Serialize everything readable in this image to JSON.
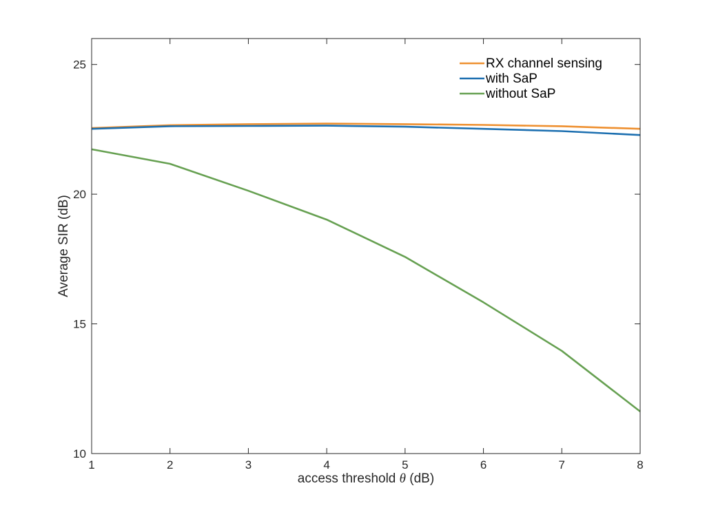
{
  "chart_data": {
    "type": "line",
    "xlabel": "access threshold θ (dB)",
    "xlabel_prefix": "access threshold ",
    "xlabel_symbol": "θ",
    "xlabel_suffix": " (dB)",
    "ylabel": "Average SIR (dB)",
    "xlim": [
      1,
      8
    ],
    "ylim": [
      10,
      26
    ],
    "x_ticks": [
      1,
      2,
      3,
      4,
      5,
      6,
      7,
      8
    ],
    "y_ticks": [
      10,
      15,
      20,
      25
    ],
    "x_tick_labels": [
      "1",
      "2",
      "3",
      "4",
      "5",
      "6",
      "7",
      "8"
    ],
    "y_tick_labels": [
      "10",
      "15",
      "20",
      "25"
    ],
    "grid": false,
    "legend_position": "top-right",
    "x": [
      1,
      2,
      3,
      4,
      5,
      6,
      7,
      8
    ],
    "series": [
      {
        "name": "RX channel sensing",
        "color": "#EE8F2E",
        "values": [
          22.55,
          22.66,
          22.7,
          22.72,
          22.7,
          22.67,
          22.62,
          22.52
        ]
      },
      {
        "name": "with SaP",
        "color": "#1C6FB0",
        "values": [
          22.52,
          22.62,
          22.63,
          22.64,
          22.6,
          22.52,
          22.43,
          22.28
        ]
      },
      {
        "name": "without SaP",
        "color": "#66A051",
        "values": [
          21.73,
          21.17,
          20.13,
          19.02,
          17.58,
          15.83,
          13.96,
          11.62
        ]
      }
    ]
  }
}
